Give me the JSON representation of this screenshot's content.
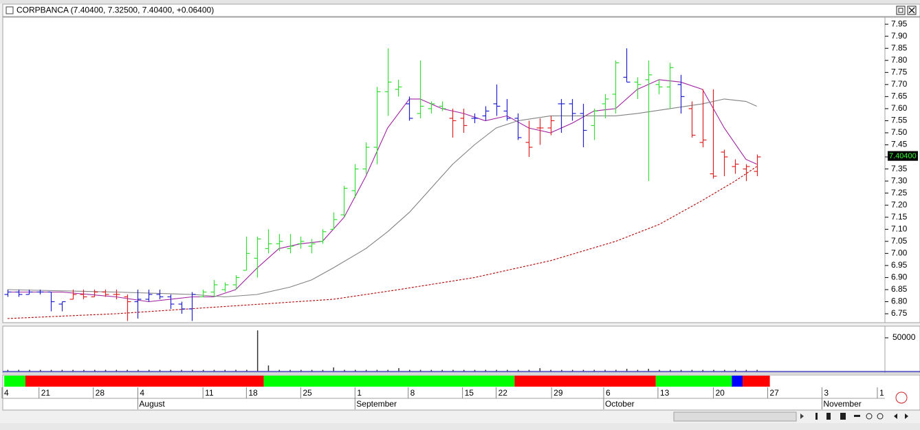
{
  "chart_data": {
    "type": "ohlc",
    "title": "CORPBANCA (7.40400, 7.32500, 7.40400, +0.06400)",
    "last_price": {
      "value": 7.404,
      "label": "7.40400"
    },
    "xlim": [
      -0.5,
      80.8
    ],
    "ylim": [
      6.713,
      7.979
    ],
    "yticks": [
      6.75,
      {
        "value": 6.8,
        "label": "6.80"
      },
      6.85,
      {
        "value": 6.9,
        "label": "6.90"
      },
      6.95,
      {
        "value": 7.0,
        "label": "7.00"
      },
      7.05,
      {
        "value": 7.1,
        "label": "7.10"
      },
      7.15,
      {
        "value": 7.2,
        "label": "7.20"
      },
      7.25,
      {
        "value": 7.3,
        "label": "7.30"
      },
      7.35,
      {
        "value": 7.4,
        "label": "7.40"
      },
      7.45,
      {
        "value": 7.5,
        "label": "7.50"
      },
      7.55,
      {
        "value": 7.6,
        "label": "7.60"
      },
      7.65,
      {
        "value": 7.7,
        "label": "7.70"
      },
      7.75,
      {
        "value": 7.8,
        "label": "7.80"
      },
      7.85,
      {
        "value": 7.9,
        "label": "7.90"
      },
      7.95
    ],
    "xticks": [
      {
        "value": -0.5,
        "label": "4"
      },
      {
        "value": 2.9,
        "label": "21"
      },
      {
        "value": 7.9,
        "label": "28"
      },
      {
        "value": 12,
        "label": "4"
      },
      {
        "value": 18,
        "label": "11"
      },
      {
        "value": 22,
        "label": "18"
      },
      {
        "value": 27,
        "label": "25"
      },
      {
        "value": 32,
        "label": "1"
      },
      {
        "value": 36.9,
        "label": "8"
      },
      {
        "value": 41.9,
        "label": "15"
      },
      {
        "value": 45,
        "label": "22"
      },
      {
        "value": 50.1,
        "label": "29"
      },
      {
        "value": 54.9,
        "label": "6"
      },
      {
        "value": 59.9,
        "label": "13"
      },
      {
        "value": 65,
        "label": "20"
      },
      {
        "value": 70,
        "label": "27"
      },
      {
        "value": 75,
        "label": "3"
      },
      {
        "value": 80.1,
        "label": "1"
      }
    ],
    "month_ticks": [
      {
        "value": 12,
        "label": "August"
      },
      {
        "value": 32,
        "label": "September"
      },
      {
        "value": 54.9,
        "label": "October"
      },
      {
        "value": 75,
        "label": "November"
      }
    ],
    "bars": [
      [
        6.83,
        6.85,
        6.82,
        6.84,
        "#2020d0"
      ],
      [
        6.84,
        6.85,
        6.82,
        6.83,
        "#2020d0"
      ],
      [
        6.83,
        6.85,
        6.83,
        6.84,
        "#2020d0"
      ],
      [
        6.84,
        6.85,
        6.83,
        6.84,
        "#2020d0"
      ],
      [
        6.84,
        6.84,
        6.76,
        6.8,
        "#2020d0"
      ],
      [
        6.79,
        6.8,
        6.76,
        6.8,
        "#2020d0"
      ],
      [
        6.81,
        6.85,
        6.81,
        6.83,
        "#e02020"
      ],
      [
        6.83,
        6.85,
        6.81,
        6.82,
        "#e02020"
      ],
      [
        6.82,
        6.85,
        6.82,
        6.84,
        "#e02020"
      ],
      [
        6.84,
        6.85,
        6.82,
        6.83,
        "#e02020"
      ],
      [
        6.83,
        6.85,
        6.81,
        6.83,
        "#e02020"
      ],
      [
        6.82,
        6.83,
        6.72,
        6.8,
        "#e02020"
      ],
      [
        6.8,
        6.85,
        6.73,
        6.81,
        "#2020d0"
      ],
      [
        6.81,
        6.85,
        6.8,
        6.83,
        "#2020d0"
      ],
      [
        6.83,
        6.85,
        6.81,
        6.82,
        "#2020d0"
      ],
      [
        6.82,
        6.83,
        6.77,
        6.79,
        "#2020d0"
      ],
      [
        6.79,
        6.8,
        6.75,
        6.77,
        "#2020d0"
      ],
      [
        6.77,
        6.84,
        6.72,
        6.83,
        "#2020d0"
      ],
      [
        6.82,
        6.85,
        6.82,
        6.84,
        "#33dd33"
      ],
      [
        6.84,
        6.89,
        6.82,
        6.87,
        "#33dd33"
      ],
      [
        6.85,
        6.88,
        6.84,
        6.87,
        "#33dd33"
      ],
      [
        6.87,
        6.91,
        6.85,
        6.9,
        "#33dd33"
      ],
      [
        6.93,
        7.07,
        6.93,
        7.0,
        "#33dd33"
      ],
      [
        6.98,
        7.07,
        6.9,
        7.06,
        "#33dd33"
      ],
      [
        7.02,
        7.1,
        7.0,
        7.04,
        "#33dd33"
      ],
      [
        7.04,
        7.08,
        7.01,
        7.05,
        "#33dd33"
      ],
      [
        7.02,
        7.08,
        7.0,
        7.03,
        "#33dd33"
      ],
      [
        7.04,
        7.07,
        7.02,
        7.05,
        "#33dd33"
      ],
      [
        7.03,
        7.06,
        7.0,
        7.04,
        "#33dd33"
      ],
      [
        7.05,
        7.1,
        7.04,
        7.09,
        "#33dd33"
      ],
      [
        7.1,
        7.17,
        7.1,
        7.14,
        "#33dd33"
      ],
      [
        7.16,
        7.28,
        7.15,
        7.27,
        "#33dd33"
      ],
      [
        7.26,
        7.37,
        7.23,
        7.35,
        "#33dd33"
      ],
      [
        7.35,
        7.46,
        7.33,
        7.44,
        "#33dd33"
      ],
      [
        7.44,
        7.69,
        7.37,
        7.67,
        "#33dd33"
      ],
      [
        7.67,
        7.85,
        7.57,
        7.71,
        "#33dd33"
      ],
      [
        7.68,
        7.72,
        7.65,
        7.69,
        "#33dd33"
      ],
      [
        7.62,
        7.65,
        7.55,
        7.56,
        "#2020d0"
      ],
      [
        7.58,
        7.8,
        7.56,
        7.61,
        "#33dd33"
      ],
      [
        7.6,
        7.63,
        7.58,
        7.62,
        "#33dd33"
      ],
      [
        7.61,
        7.63,
        7.59,
        7.6,
        "#33dd33"
      ],
      [
        7.56,
        7.6,
        7.48,
        7.55,
        "#e02020"
      ],
      [
        7.56,
        7.6,
        7.5,
        7.53,
        "#e02020"
      ],
      [
        7.56,
        7.58,
        7.54,
        7.56,
        "#2020d0"
      ],
      [
        7.57,
        7.61,
        7.55,
        7.59,
        "#2020d0"
      ],
      [
        7.62,
        7.7,
        7.57,
        7.61,
        "#2020d0"
      ],
      [
        7.59,
        7.64,
        7.55,
        7.56,
        "#2020d0"
      ],
      [
        7.56,
        7.58,
        7.47,
        7.48,
        "#2020d0"
      ],
      [
        7.46,
        7.55,
        7.4,
        7.44,
        "#e02020"
      ],
      [
        7.52,
        7.56,
        7.45,
        7.52,
        "#e02020"
      ],
      [
        7.52,
        7.57,
        7.49,
        7.55,
        "#e02020"
      ],
      [
        7.62,
        7.64,
        7.5,
        7.62,
        "#2020d0"
      ],
      [
        7.62,
        7.64,
        7.55,
        7.58,
        "#2020d0"
      ],
      [
        7.58,
        7.62,
        7.44,
        7.51,
        "#2020d0"
      ],
      [
        7.53,
        7.6,
        7.47,
        7.59,
        "#33dd33"
      ],
      [
        7.62,
        7.66,
        7.56,
        7.64,
        "#33dd33"
      ],
      [
        7.66,
        7.8,
        7.58,
        7.79,
        "#33dd33"
      ],
      [
        7.73,
        7.85,
        7.71,
        7.71,
        "#2020d0"
      ],
      [
        7.71,
        7.73,
        7.64,
        7.7,
        "#33dd33"
      ],
      [
        7.72,
        7.8,
        7.3,
        7.74,
        "#33dd33"
      ],
      [
        7.7,
        7.72,
        7.66,
        7.69,
        "#33dd33"
      ],
      [
        7.69,
        7.79,
        7.6,
        7.77,
        "#33dd33"
      ],
      [
        7.7,
        7.74,
        7.58,
        7.65,
        "#2020d0"
      ],
      [
        7.6,
        7.63,
        7.48,
        7.49,
        "#e02020"
      ],
      [
        7.46,
        7.68,
        7.44,
        7.47,
        "#e02020"
      ],
      [
        7.33,
        7.68,
        7.31,
        7.32,
        "#e02020"
      ],
      [
        7.42,
        7.43,
        7.32,
        7.4,
        "#e02020"
      ],
      [
        7.36,
        7.39,
        7.33,
        7.37,
        "#e02020"
      ],
      [
        7.35,
        7.37,
        7.3,
        7.36,
        "#e02020"
      ],
      [
        7.34,
        7.41,
        7.32,
        7.4,
        "#e02020"
      ]
    ],
    "averages": [
      {
        "color": "#a020a0",
        "dash": false,
        "x": [
          0,
          5,
          10,
          13,
          17,
          19,
          21,
          23,
          25,
          27,
          29,
          31,
          33,
          35,
          37,
          38,
          40,
          42,
          44,
          46,
          48,
          50,
          52,
          54,
          56,
          58,
          60,
          62,
          64,
          66,
          68,
          69
        ],
        "values": [
          6.84,
          6.84,
          6.82,
          6.8,
          6.82,
          6.82,
          6.85,
          6.94,
          7.02,
          7.04,
          7.05,
          7.15,
          7.32,
          7.52,
          7.64,
          7.64,
          7.6,
          7.58,
          7.55,
          7.57,
          7.52,
          7.5,
          7.54,
          7.59,
          7.6,
          7.68,
          7.72,
          7.71,
          7.68,
          7.52,
          7.39,
          7.37
        ]
      },
      {
        "color": "#808080",
        "dash": false,
        "x": [
          0,
          10,
          17,
          20,
          23,
          26,
          28,
          30,
          33,
          35,
          37,
          39,
          41,
          43,
          45,
          47,
          50,
          53,
          56,
          58,
          61,
          64,
          66,
          68,
          69
        ],
        "values": [
          6.85,
          6.84,
          6.83,
          6.82,
          6.83,
          6.86,
          6.89,
          6.94,
          7.02,
          7.09,
          7.17,
          7.27,
          7.37,
          7.45,
          7.52,
          7.55,
          7.57,
          7.57,
          7.57,
          7.58,
          7.6,
          7.62,
          7.64,
          7.63,
          7.61
        ]
      },
      {
        "color": "#b00000",
        "dash": true,
        "x": [
          0,
          10,
          20,
          30,
          36,
          43,
          50,
          56,
          60,
          64,
          67,
          69
        ],
        "values": [
          6.73,
          6.75,
          6.78,
          6.81,
          6.85,
          6.9,
          6.97,
          7.05,
          7.12,
          7.22,
          7.3,
          7.36
        ]
      }
    ],
    "volume": {
      "color": "#303030",
      "ylim": [
        0,
        65300
      ],
      "yticks": [
        50000
      ],
      "values": [
        2500,
        2500,
        2500,
        2500,
        2500,
        2500,
        2500,
        2500,
        2500,
        2500,
        2500,
        2500,
        2500,
        2500,
        2500,
        2500,
        2500,
        2500,
        2500,
        2500,
        2500,
        2500,
        2500,
        61000,
        9000,
        2500,
        2500,
        2500,
        2500,
        2500,
        6000,
        2500,
        2500,
        2500,
        2500,
        2500,
        5000,
        2500,
        2500,
        2500,
        2500,
        2500,
        2500,
        2500,
        2500,
        2500,
        2500,
        2500,
        2500,
        5000,
        2500,
        2500,
        2500,
        2500,
        2500,
        2500,
        2500,
        4000,
        2500,
        4000,
        2500,
        2500,
        2500,
        2500,
        2500,
        2500,
        2500,
        2500,
        2500,
        2500
      ]
    },
    "trend": [
      {
        "from": -0.3,
        "to": 1.65,
        "color": "#00ff00"
      },
      {
        "from": 1.65,
        "to": 23.6,
        "color": "#ff0000"
      },
      {
        "from": 23.6,
        "to": 46.7,
        "color": "#00ff00"
      },
      {
        "from": 46.7,
        "to": 59.7,
        "color": "#ff0000"
      },
      {
        "from": 59.7,
        "to": 66.7,
        "color": "#00ff00"
      },
      {
        "from": 66.7,
        "to": 67.7,
        "color": "#0000ff"
      },
      {
        "from": 67.7,
        "to": 70.2,
        "color": "#ff0000"
      }
    ]
  }
}
